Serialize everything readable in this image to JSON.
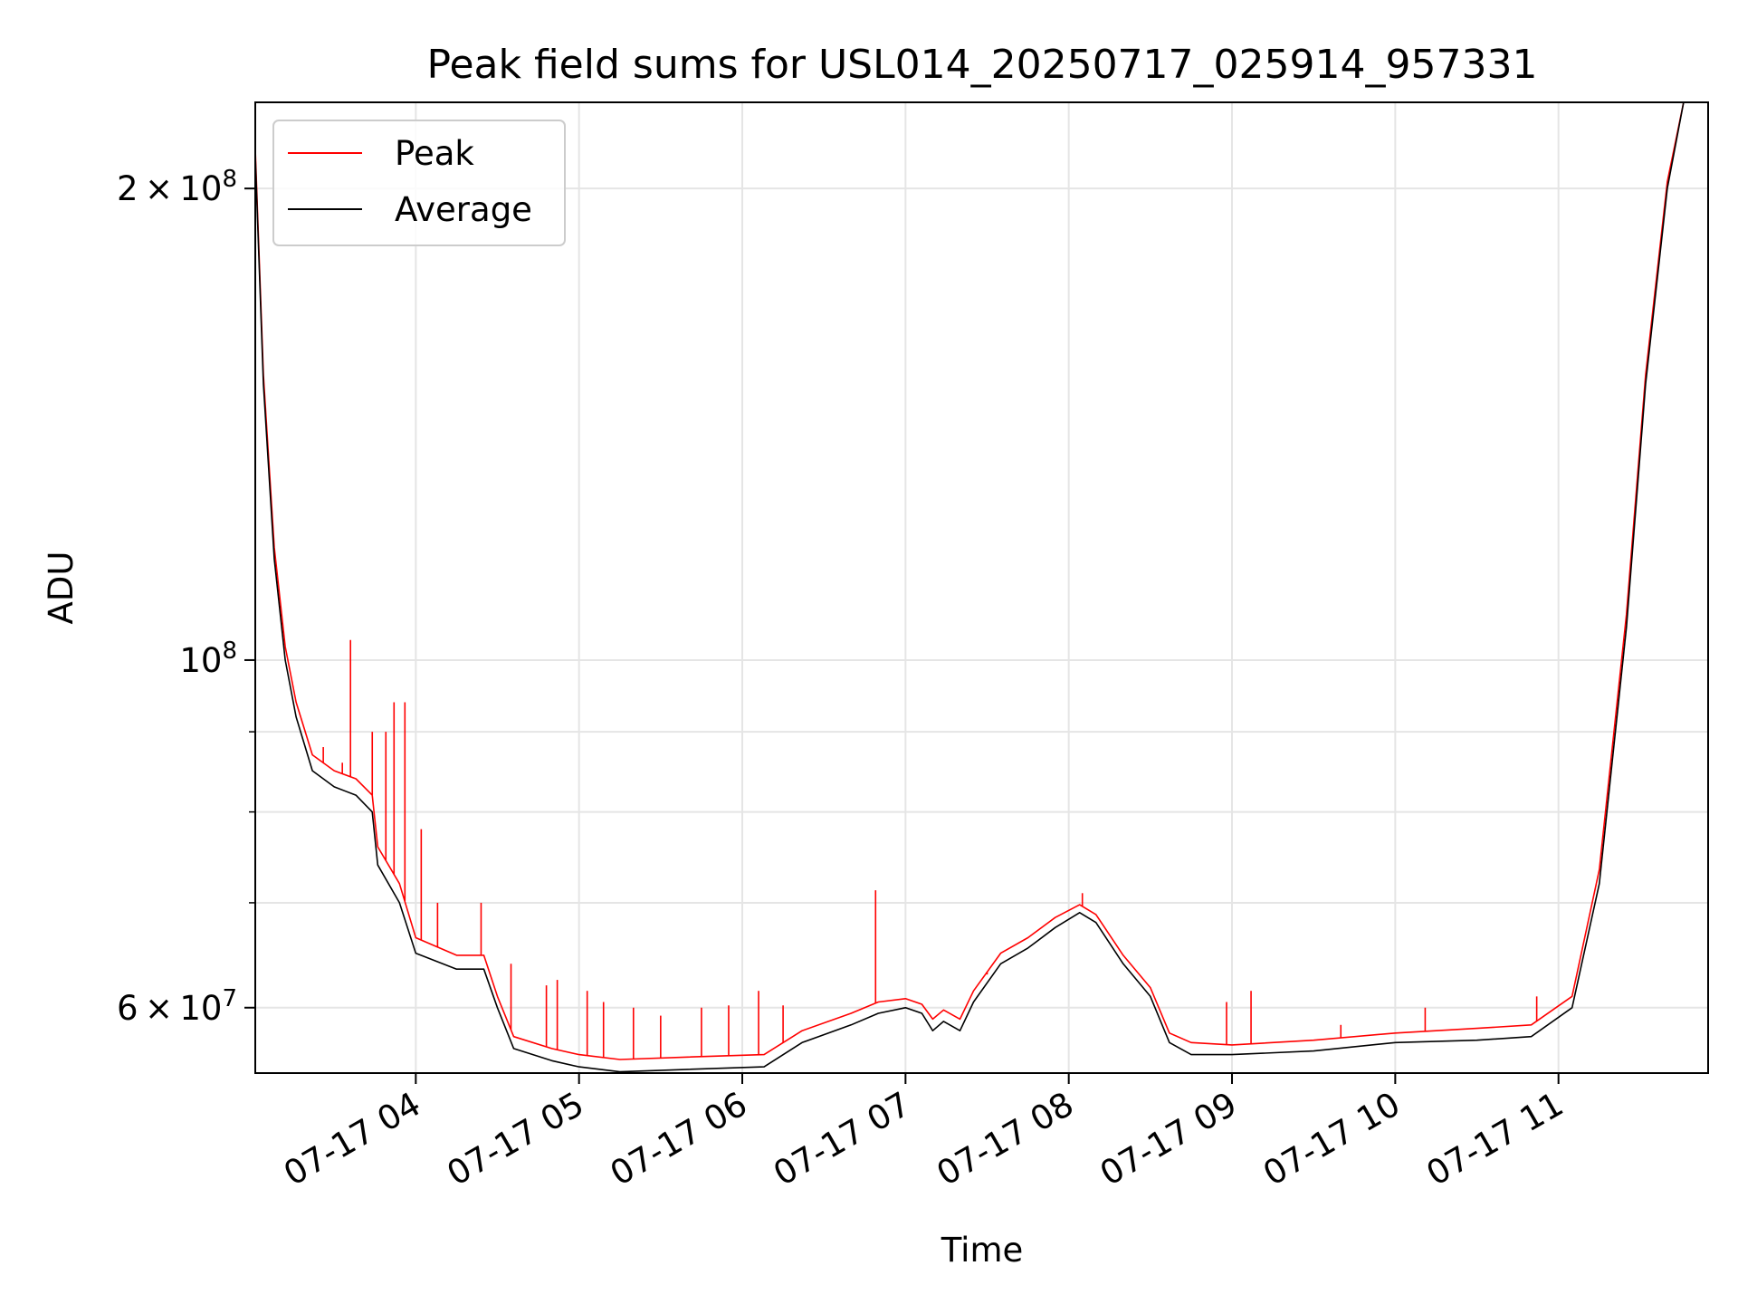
{
  "chart_data": {
    "type": "line",
    "title": "Peak field sums for USL014_20250717_025914_957331",
    "xlabel": "Time",
    "ylabel": "ADU",
    "y_scale": "log",
    "grid": true,
    "legend_position": "top-left",
    "x_range": [
      "2025-07-17 03:01",
      "2025-07-17 11:55"
    ],
    "y_range": [
      54500000,
      227000000
    ],
    "x_tick_labels": [
      "07-17 04",
      "07-17 05",
      "07-17 06",
      "07-17 07",
      "07-17 08",
      "07-17 09",
      "07-17 10",
      "07-17 11"
    ],
    "x_ticks": [
      "2025-07-17 04:00",
      "2025-07-17 05:00",
      "2025-07-17 06:00",
      "2025-07-17 07:00",
      "2025-07-17 08:00",
      "2025-07-17 09:00",
      "2025-07-17 10:00",
      "2025-07-17 11:00"
    ],
    "y_major_ticks": [
      {
        "value": 60000000,
        "mantissa": "6",
        "exponent": "7"
      },
      {
        "value": 100000000,
        "mantissa": "",
        "exponent": "8"
      },
      {
        "value": 200000000,
        "mantissa": "2",
        "exponent": "8"
      }
    ],
    "y_minor_ticks": [
      70000000,
      80000000,
      90000000
    ],
    "series": [
      {
        "name": "Average",
        "color": "#000000",
        "points": [
          [
            "2025-07-17 03:01",
            210000000
          ],
          [
            "2025-07-17 03:04",
            150000000
          ],
          [
            "2025-07-17 03:08",
            116000000
          ],
          [
            "2025-07-17 03:12",
            100000000
          ],
          [
            "2025-07-17 03:16",
            92000000
          ],
          [
            "2025-07-17 03:22",
            85000000
          ],
          [
            "2025-07-17 03:30",
            83000000
          ],
          [
            "2025-07-17 03:38",
            82000000
          ],
          [
            "2025-07-17 03:44",
            80000000
          ],
          [
            "2025-07-17 03:46",
            74000000
          ],
          [
            "2025-07-17 03:54",
            70000000
          ],
          [
            "2025-07-17 04:00",
            65000000
          ],
          [
            "2025-07-17 04:15",
            63500000
          ],
          [
            "2025-07-17 04:25",
            63500000
          ],
          [
            "2025-07-17 04:30",
            60000000
          ],
          [
            "2025-07-17 04:36",
            56500000
          ],
          [
            "2025-07-17 04:50",
            55500000
          ],
          [
            "2025-07-17 05:00",
            55000000
          ],
          [
            "2025-07-17 05:15",
            54600000
          ],
          [
            "2025-07-17 05:40",
            54800000
          ],
          [
            "2025-07-17 06:08",
            55000000
          ],
          [
            "2025-07-17 06:22",
            57000000
          ],
          [
            "2025-07-17 06:40",
            58500000
          ],
          [
            "2025-07-17 06:50",
            59500000
          ],
          [
            "2025-07-17 07:00",
            60000000
          ],
          [
            "2025-07-17 07:06",
            59500000
          ],
          [
            "2025-07-17 07:10",
            58000000
          ],
          [
            "2025-07-17 07:14",
            58800000
          ],
          [
            "2025-07-17 07:20",
            58000000
          ],
          [
            "2025-07-17 07:25",
            60500000
          ],
          [
            "2025-07-17 07:35",
            64000000
          ],
          [
            "2025-07-17 07:45",
            65500000
          ],
          [
            "2025-07-17 07:55",
            67500000
          ],
          [
            "2025-07-17 08:04",
            69000000
          ],
          [
            "2025-07-17 08:10",
            68000000
          ],
          [
            "2025-07-17 08:20",
            64000000
          ],
          [
            "2025-07-17 08:30",
            61000000
          ],
          [
            "2025-07-17 08:37",
            57000000
          ],
          [
            "2025-07-17 08:45",
            56000000
          ],
          [
            "2025-07-17 09:00",
            56000000
          ],
          [
            "2025-07-17 09:30",
            56300000
          ],
          [
            "2025-07-17 10:00",
            57000000
          ],
          [
            "2025-07-17 10:30",
            57200000
          ],
          [
            "2025-07-17 10:50",
            57500000
          ],
          [
            "2025-07-17 11:05",
            60000000
          ],
          [
            "2025-07-17 11:15",
            72000000
          ],
          [
            "2025-07-17 11:25",
            105000000
          ],
          [
            "2025-07-17 11:32",
            150000000
          ],
          [
            "2025-07-17 11:40",
            200000000
          ],
          [
            "2025-07-17 11:46",
            227000000
          ],
          [
            "2025-07-17 11:55",
            227000000
          ]
        ]
      },
      {
        "name": "Peak",
        "color": "#ff0000",
        "points": [
          [
            "2025-07-17 03:01",
            212000000
          ],
          [
            "2025-07-17 03:04",
            152000000
          ],
          [
            "2025-07-17 03:08",
            118000000
          ],
          [
            "2025-07-17 03:12",
            102000000
          ],
          [
            "2025-07-17 03:16",
            94000000
          ],
          [
            "2025-07-17 03:22",
            87000000
          ],
          [
            "2025-07-17 03:30",
            85000000
          ],
          [
            "2025-07-17 03:38",
            84000000
          ],
          [
            "2025-07-17 03:44",
            82000000
          ],
          [
            "2025-07-17 03:46",
            76000000
          ],
          [
            "2025-07-17 03:54",
            72000000
          ],
          [
            "2025-07-17 04:00",
            66500000
          ],
          [
            "2025-07-17 04:15",
            64800000
          ],
          [
            "2025-07-17 04:25",
            64800000
          ],
          [
            "2025-07-17 04:30",
            61000000
          ],
          [
            "2025-07-17 04:36",
            57500000
          ],
          [
            "2025-07-17 04:50",
            56500000
          ],
          [
            "2025-07-17 05:00",
            56000000
          ],
          [
            "2025-07-17 05:15",
            55600000
          ],
          [
            "2025-07-17 05:40",
            55800000
          ],
          [
            "2025-07-17 06:08",
            56000000
          ],
          [
            "2025-07-17 06:22",
            58000000
          ],
          [
            "2025-07-17 06:40",
            59500000
          ],
          [
            "2025-07-17 06:50",
            60500000
          ],
          [
            "2025-07-17 07:00",
            60800000
          ],
          [
            "2025-07-17 07:06",
            60300000
          ],
          [
            "2025-07-17 07:10",
            59000000
          ],
          [
            "2025-07-17 07:14",
            59800000
          ],
          [
            "2025-07-17 07:20",
            59000000
          ],
          [
            "2025-07-17 07:25",
            61500000
          ],
          [
            "2025-07-17 07:35",
            65000000
          ],
          [
            "2025-07-17 07:45",
            66500000
          ],
          [
            "2025-07-17 07:55",
            68500000
          ],
          [
            "2025-07-17 08:04",
            69800000
          ],
          [
            "2025-07-17 08:10",
            68800000
          ],
          [
            "2025-07-17 08:20",
            64800000
          ],
          [
            "2025-07-17 08:30",
            61800000
          ],
          [
            "2025-07-17 08:37",
            57800000
          ],
          [
            "2025-07-17 08:45",
            57000000
          ],
          [
            "2025-07-17 09:00",
            56800000
          ],
          [
            "2025-07-17 09:30",
            57200000
          ],
          [
            "2025-07-17 10:00",
            57800000
          ],
          [
            "2025-07-17 10:30",
            58200000
          ],
          [
            "2025-07-17 10:50",
            58500000
          ],
          [
            "2025-07-17 11:05",
            61000000
          ],
          [
            "2025-07-17 11:15",
            73500000
          ],
          [
            "2025-07-17 11:25",
            107000000
          ],
          [
            "2025-07-17 11:32",
            152000000
          ],
          [
            "2025-07-17 11:40",
            202000000
          ],
          [
            "2025-07-17 11:46",
            227000000
          ],
          [
            "2025-07-17 11:55",
            227000000
          ]
        ],
        "spikes": [
          [
            "2025-07-17 03:36",
            103000000
          ],
          [
            "2025-07-17 03:26",
            88000000
          ],
          [
            "2025-07-17 03:33",
            86000000
          ],
          [
            "2025-07-17 03:44",
            90000000
          ],
          [
            "2025-07-17 03:49",
            90000000
          ],
          [
            "2025-07-17 03:52",
            94000000
          ],
          [
            "2025-07-17 03:56",
            94000000
          ],
          [
            "2025-07-17 04:02",
            78000000
          ],
          [
            "2025-07-17 04:08",
            70000000
          ],
          [
            "2025-07-17 04:24",
            70000000
          ],
          [
            "2025-07-17 04:35",
            64000000
          ],
          [
            "2025-07-17 04:48",
            62000000
          ],
          [
            "2025-07-17 04:52",
            62500000
          ],
          [
            "2025-07-17 05:03",
            61500000
          ],
          [
            "2025-07-17 05:09",
            60500000
          ],
          [
            "2025-07-17 05:20",
            60000000
          ],
          [
            "2025-07-17 05:30",
            59300000
          ],
          [
            "2025-07-17 05:45",
            60000000
          ],
          [
            "2025-07-17 05:55",
            60200000
          ],
          [
            "2025-07-17 06:06",
            61500000
          ],
          [
            "2025-07-17 06:15",
            60200000
          ],
          [
            "2025-07-17 06:49",
            71300000
          ],
          [
            "2025-07-17 07:30",
            63000000
          ],
          [
            "2025-07-17 08:05",
            71000000
          ],
          [
            "2025-07-17 08:58",
            60500000
          ],
          [
            "2025-07-17 09:07",
            61500000
          ],
          [
            "2025-07-17 09:40",
            58500000
          ],
          [
            "2025-07-17 10:11",
            60000000
          ],
          [
            "2025-07-17 10:52",
            61000000
          ]
        ]
      }
    ]
  }
}
